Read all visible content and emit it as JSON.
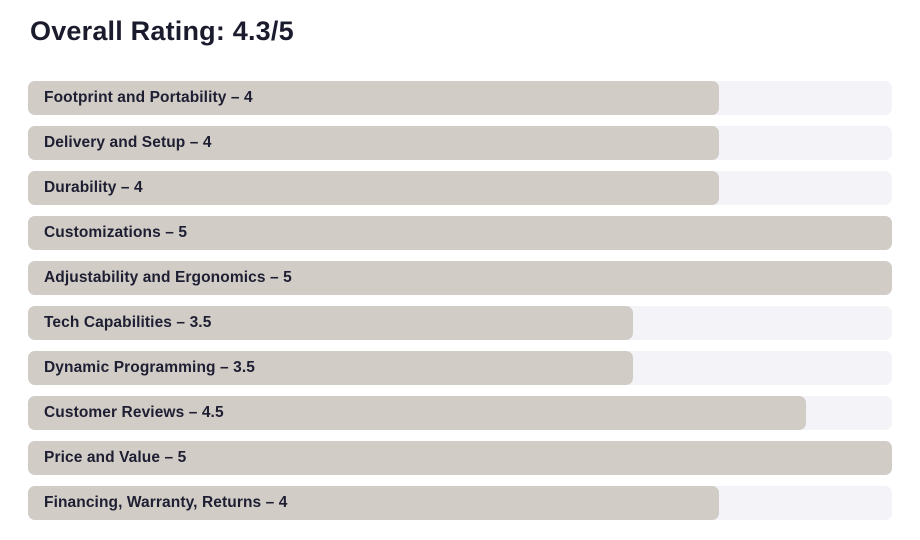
{
  "page": {
    "title": "Overall Rating: 4.3/5"
  },
  "chart_data": {
    "type": "bar",
    "orientation": "horizontal",
    "title": "Overall Rating: 4.3/5",
    "overall_rating": 4.3,
    "rating_scale_max": 5,
    "grid": false,
    "legend": false,
    "categories": [
      "Footprint and Portability",
      "Delivery and Setup",
      "Durability",
      "Customizations",
      "Adjustability and Ergonomics",
      "Tech Capabilities",
      "Dynamic Programming",
      "Customer Reviews",
      "Price and Value",
      "Financing, Warranty, Returns"
    ],
    "values": [
      4,
      4,
      4,
      5,
      5,
      3.5,
      3.5,
      4.5,
      5,
      4
    ],
    "xlim": [
      0,
      5
    ],
    "bars": [
      {
        "label": "Footprint and Portability – 4",
        "name": "Footprint and Portability",
        "value": 4
      },
      {
        "label": "Delivery and Setup – 4",
        "name": "Delivery and Setup",
        "value": 4
      },
      {
        "label": "Durability – 4",
        "name": "Durability",
        "value": 4
      },
      {
        "label": "Customizations – 5",
        "name": "Customizations",
        "value": 5
      },
      {
        "label": "Adjustability and Ergonomics – 5",
        "name": "Adjustability and Ergonomics",
        "value": 5
      },
      {
        "label": "Tech Capabilities – 3.5",
        "name": "Tech Capabilities",
        "value": 3.5
      },
      {
        "label": "Dynamic Programming – 3.5",
        "name": "Dynamic Programming",
        "value": 3.5
      },
      {
        "label": "Customer Reviews – 4.5",
        "name": "Customer Reviews",
        "value": 4.5
      },
      {
        "label": "Price and Value – 5",
        "name": "Price and Value",
        "value": 5
      },
      {
        "label": "Financing, Warranty, Returns – 4",
        "name": "Financing, Warranty, Returns",
        "value": 4
      }
    ],
    "colors": {
      "bar_fill": "#d1ccc5",
      "bar_track": "#f4f3f8",
      "text": "#1e1e33",
      "title_text": "#1b1b2e",
      "background": "#ffffff"
    }
  }
}
